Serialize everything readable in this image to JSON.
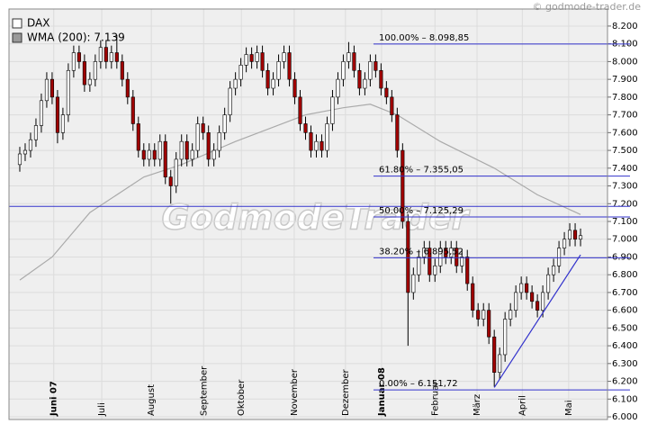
{
  "chart_data": {
    "type": "candlestick",
    "legend": [
      {
        "name": "DAX",
        "color": "#ffffff"
      },
      {
        "name": "WMA (200): 7.139",
        "color": "#999999"
      }
    ],
    "copyright": "© godmode-trader.de",
    "watermark": "GodmodeTrader",
    "up_color": "#ffffff",
    "down_color": "#a00000",
    "wick_color": "#000000",
    "open": [
      7420,
      7480,
      7500,
      7560,
      7640,
      7780,
      7900,
      7800,
      7600,
      7700,
      7950,
      8050,
      8000,
      7870,
      7900,
      8000,
      8080,
      8000,
      8050,
      8000,
      7900,
      7800,
      7650,
      7500,
      7450,
      7500,
      7450,
      7550,
      7350,
      7300,
      7450,
      7550,
      7450,
      7500,
      7650,
      7600,
      7450,
      7500,
      7600,
      7700,
      7850,
      7900,
      7980,
      8040,
      8000,
      8050,
      7950,
      7850,
      7900,
      8000,
      8050,
      7900,
      7800,
      7650,
      7600,
      7500,
      7550,
      7500,
      7650,
      7800,
      7900,
      8000,
      8050,
      7950,
      7850,
      7900,
      8000,
      7950,
      7850,
      7800,
      7700,
      7500,
      7100,
      6700,
      6800,
      6900,
      6950,
      6800,
      6850,
      6950,
      6900,
      6950,
      6850,
      6900,
      6750,
      6600,
      6550,
      6600,
      6450,
      6250,
      6350,
      6550,
      6600,
      6700,
      6750,
      6700,
      6650,
      6600,
      6700,
      6800,
      6850,
      6950,
      7000,
      7050,
      7000
    ],
    "high": [
      7520,
      7540,
      7600,
      7680,
      7820,
      7940,
      7940,
      7840,
      7740,
      7990,
      8090,
      8090,
      8040,
      7940,
      8040,
      8120,
      8120,
      8090,
      8150,
      8040,
      7940,
      7840,
      7690,
      7540,
      7540,
      7540,
      7590,
      7590,
      7390,
      7490,
      7590,
      7590,
      7540,
      7690,
      7690,
      7640,
      7540,
      7640,
      7740,
      7890,
      7940,
      8020,
      8080,
      8080,
      8090,
      8090,
      7990,
      7940,
      8040,
      8090,
      8090,
      7940,
      7840,
      7690,
      7640,
      7590,
      7590,
      7690,
      7840,
      7940,
      8040,
      8110,
      8090,
      7990,
      7940,
      8040,
      8040,
      7990,
      7890,
      7840,
      7740,
      7540,
      7140,
      6840,
      6940,
      6990,
      6990,
      6890,
      6990,
      6990,
      6990,
      6990,
      6940,
      6940,
      6790,
      6640,
      6640,
      6640,
      6490,
      6390,
      6590,
      6640,
      6740,
      6790,
      6790,
      6740,
      6690,
      6740,
      6840,
      6890,
      6990,
      7040,
      7090,
      7090,
      7060
    ],
    "low": [
      7380,
      7440,
      7460,
      7520,
      7600,
      7740,
      7760,
      7540,
      7560,
      7660,
      7910,
      7960,
      7830,
      7830,
      7860,
      7960,
      7960,
      7960,
      7960,
      7860,
      7760,
      7610,
      7460,
      7410,
      7410,
      7410,
      7410,
      7310,
      7200,
      7260,
      7410,
      7410,
      7410,
      7460,
      7560,
      7410,
      7410,
      7460,
      7560,
      7660,
      7810,
      7860,
      7940,
      7960,
      7960,
      7910,
      7810,
      7810,
      7860,
      7960,
      7860,
      7760,
      7610,
      7560,
      7460,
      7460,
      7460,
      7460,
      7610,
      7760,
      7860,
      7960,
      7910,
      7810,
      7810,
      7860,
      7910,
      7810,
      7760,
      7660,
      7460,
      7060,
      6400,
      6660,
      6760,
      6860,
      6760,
      6760,
      6810,
      6860,
      6860,
      6810,
      6810,
      6710,
      6560,
      6510,
      6510,
      6410,
      6170,
      6210,
      6310,
      6510,
      6560,
      6660,
      6660,
      6610,
      6560,
      6560,
      6660,
      6760,
      6810,
      6910,
      6960,
      6960,
      6960
    ],
    "close": [
      7480,
      7500,
      7560,
      7640,
      7780,
      7900,
      7800,
      7600,
      7700,
      7950,
      8050,
      8000,
      7870,
      7900,
      8000,
      8080,
      8000,
      8050,
      8000,
      7900,
      7800,
      7650,
      7500,
      7450,
      7500,
      7450,
      7550,
      7350,
      7300,
      7450,
      7550,
      7450,
      7500,
      7650,
      7600,
      7450,
      7500,
      7600,
      7700,
      7850,
      7900,
      7980,
      8040,
      8000,
      8050,
      7950,
      7850,
      7900,
      8000,
      8050,
      7900,
      7800,
      7650,
      7600,
      7500,
      7550,
      7500,
      7650,
      7800,
      7900,
      8000,
      8050,
      7950,
      7850,
      7900,
      8000,
      7950,
      7850,
      7800,
      7700,
      7500,
      7100,
      6700,
      6800,
      6900,
      6950,
      6800,
      6850,
      6950,
      6900,
      6950,
      6850,
      6900,
      6750,
      6600,
      6550,
      6600,
      6450,
      6250,
      6350,
      6550,
      6600,
      6700,
      6750,
      6700,
      6650,
      6600,
      6700,
      6800,
      6850,
      6950,
      7000,
      7050,
      7000,
      7020
    ],
    "wma": {
      "color": "#aaaaaa",
      "x": [
        0,
        6,
        13,
        23,
        30,
        40,
        53,
        60,
        65,
        70,
        78,
        88,
        96,
        104
      ],
      "values": [
        6770,
        6900,
        7150,
        7350,
        7420,
        7550,
        7700,
        7740,
        7760,
        7700,
        7550,
        7400,
        7250,
        7139
      ]
    },
    "fib_start": 65.6,
    "fib_color": "#3333cc",
    "fib_levels": [
      {
        "value": 8098.85,
        "label": "100.00% – 8.098,85"
      },
      {
        "value": 7355.05,
        "label": "61.80% – 7.355,05"
      },
      {
        "value": 7125.29,
        "label": "50.00% – 7.125,29"
      },
      {
        "value": 6895.52,
        "label": "38.20% – 6.895,52"
      },
      {
        "value": 6151.72,
        "label": "0.00% – 6.151,72"
      }
    ],
    "hline": 7185,
    "trendline": {
      "x": [
        88,
        104
      ],
      "values": [
        6165,
        6912
      ]
    },
    "xlim": [
      -2,
      109
    ],
    "ylim": [
      5985,
      8296
    ],
    "xticks": [
      {
        "value": 6.3,
        "label": "Juni 07"
      },
      {
        "value": 15.2,
        "label": "Juli"
      },
      {
        "value": 24.4,
        "label": "August"
      },
      {
        "value": 34.1,
        "label": "September"
      },
      {
        "value": 41.1,
        "label": "Oktober"
      },
      {
        "value": 50.9,
        "label": "November"
      },
      {
        "value": 60.4,
        "label": "Dezember"
      },
      {
        "value": 67.1,
        "label": "Januar 08"
      },
      {
        "value": 77,
        "label": "Februar"
      },
      {
        "value": 84.8,
        "label": "März"
      },
      {
        "value": 93.2,
        "label": "April"
      },
      {
        "value": 101.8,
        "label": "Mai"
      }
    ],
    "yticks": [
      {
        "value": 6000,
        "label": "6.000"
      },
      {
        "value": 6100,
        "label": "6.100"
      },
      {
        "value": 6200,
        "label": "6.200"
      },
      {
        "value": 6300,
        "label": "6.300"
      },
      {
        "value": 6400,
        "label": "6.400"
      },
      {
        "value": 6500,
        "label": "6.500"
      },
      {
        "value": 6600,
        "label": "6.600"
      },
      {
        "value": 6700,
        "label": "6.700"
      },
      {
        "value": 6800,
        "label": "6.800"
      },
      {
        "value": 6900,
        "label": "6.900"
      },
      {
        "value": 7000,
        "label": "7.000"
      },
      {
        "value": 7100,
        "label": "7.100"
      },
      {
        "value": 7200,
        "label": "7.200"
      },
      {
        "value": 7300,
        "label": "7.300"
      },
      {
        "value": 7400,
        "label": "7.400"
      },
      {
        "value": 7500,
        "label": "7.500"
      },
      {
        "value": 7600,
        "label": "7.600"
      },
      {
        "value": 7700,
        "label": "7.700"
      },
      {
        "value": 7800,
        "label": "7.800"
      },
      {
        "value": 7900,
        "label": "7.900"
      },
      {
        "value": 8000,
        "label": "8.000"
      },
      {
        "value": 8100,
        "label": "8.100"
      },
      {
        "value": 8200,
        "label": "8.200"
      }
    ],
    "grid": true
  }
}
